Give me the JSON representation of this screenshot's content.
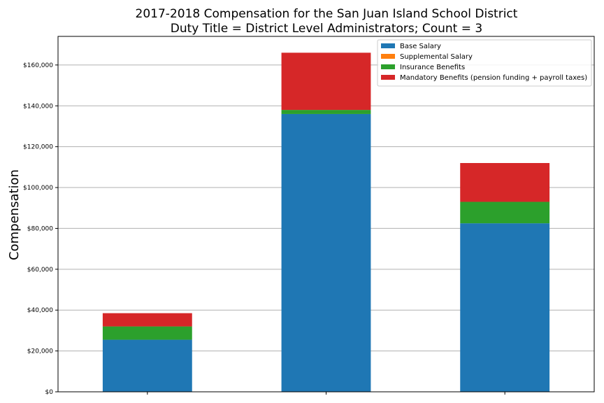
{
  "chart_data": {
    "type": "bar",
    "stacked": true,
    "title": "2017-2018 Compensation for the San Juan Island School District",
    "subtitle": "Duty Title = District Level Administrators; Count = 3",
    "xlabel": "",
    "ylabel": "Compensation",
    "ylim": [
      0,
      174000
    ],
    "yticks": [
      0,
      20000,
      40000,
      60000,
      80000,
      100000,
      120000,
      140000,
      160000
    ],
    "ytick_labels": [
      "$0",
      "$20,000",
      "$40,000",
      "$60,000",
      "$80,000",
      "$100,000",
      "$120,000",
      "$140,000",
      "$160,000"
    ],
    "categories": [
      "",
      "",
      ""
    ],
    "grid": "horizontal",
    "legend_position": "top-right",
    "series": [
      {
        "name": "Base Salary",
        "color": "#1f77b4",
        "values": [
          25500,
          136000,
          82500
        ]
      },
      {
        "name": "Supplemental Salary",
        "color": "#ff7f0e",
        "values": [
          0,
          0,
          0
        ]
      },
      {
        "name": "Insurance Benefits",
        "color": "#2ca02c",
        "values": [
          6500,
          2000,
          10500
        ]
      },
      {
        "name": "Mandatory Benefits (pension funding + payroll taxes)",
        "color": "#d62728",
        "values": [
          6500,
          28000,
          19000
        ]
      }
    ]
  }
}
